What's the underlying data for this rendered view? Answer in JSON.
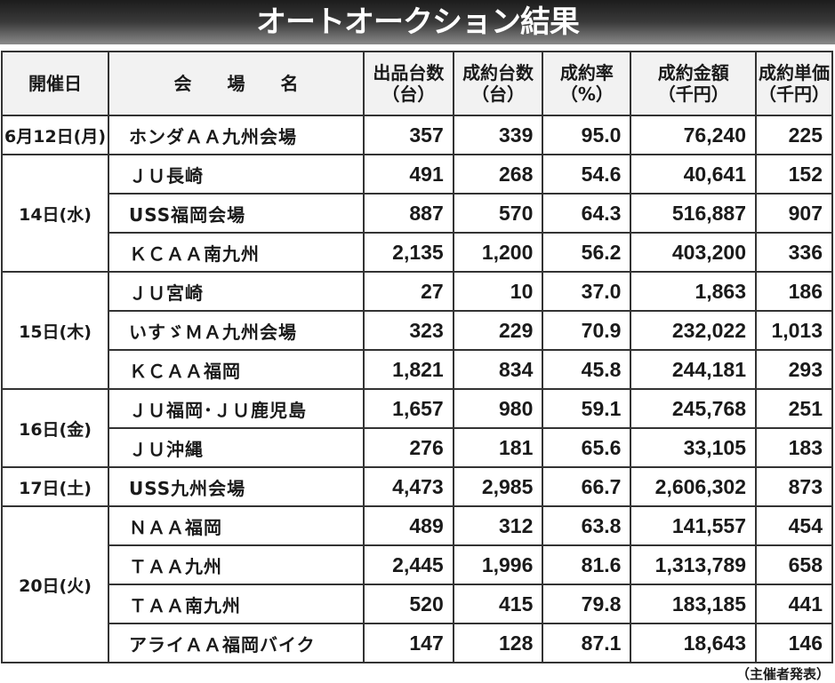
{
  "title": "オートオークション結果",
  "headers": [
    {
      "line1": "開催日",
      "line2": ""
    },
    {
      "line1": "会　　場　　名",
      "line2": ""
    },
    {
      "line1": "出品台数",
      "line2": "（台）"
    },
    {
      "line1": "成約台数",
      "line2": "（台）"
    },
    {
      "line1": "成約率",
      "line2": "（%）"
    },
    {
      "line1": "成約金額",
      "line2": "（千円）"
    },
    {
      "line1": "成約単価",
      "line2": "（千円）"
    }
  ],
  "groups": [
    {
      "date": "6月12日(月)",
      "rows": [
        [
          "ホンダＡＡ九州会場",
          "357",
          "339",
          "95.0",
          "76,240",
          "225"
        ]
      ]
    },
    {
      "date": "14日(水)",
      "rows": [
        [
          "ＪＵ長崎",
          "491",
          "268",
          "54.6",
          "40,641",
          "152"
        ],
        [
          "USS福岡会場",
          "887",
          "570",
          "64.3",
          "516,887",
          "907"
        ],
        [
          "ＫＣＡＡ南九州",
          "2,135",
          "1,200",
          "56.2",
          "403,200",
          "336"
        ]
      ]
    },
    {
      "date": "15日(木)",
      "rows": [
        [
          "ＪＵ宮崎",
          "27",
          "10",
          "37.0",
          "1,863",
          "186"
        ],
        [
          "いすゞＭＡ九州会場",
          "323",
          "229",
          "70.9",
          "232,022",
          "1,013"
        ],
        [
          "ＫＣＡＡ福岡",
          "1,821",
          "834",
          "45.8",
          "244,181",
          "293"
        ]
      ]
    },
    {
      "date": "16日(金)",
      "rows": [
        [
          "ＪＵ福岡･ＪＵ鹿児島",
          "1,657",
          "980",
          "59.1",
          "245,768",
          "251"
        ],
        [
          "ＪＵ沖縄",
          "276",
          "181",
          "65.6",
          "33,105",
          "183"
        ]
      ]
    },
    {
      "date": "17日(土)",
      "rows": [
        [
          "USS九州会場",
          "4,473",
          "2,985",
          "66.7",
          "2,606,302",
          "873"
        ]
      ]
    },
    {
      "date": "20日(火)",
      "rows": [
        [
          "ＮＡＡ福岡",
          "489",
          "312",
          "63.8",
          "141,557",
          "454"
        ],
        [
          "ＴＡＡ九州",
          "2,445",
          "1,996",
          "81.6",
          "1,313,789",
          "658"
        ],
        [
          "ＴＡＡ南九州",
          "520",
          "415",
          "79.8",
          "183,185",
          "441"
        ],
        [
          "アライＡＡ福岡バイク",
          "147",
          "128",
          "87.1",
          "18,643",
          "146"
        ]
      ]
    }
  ],
  "footer": "（主催者発表）"
}
